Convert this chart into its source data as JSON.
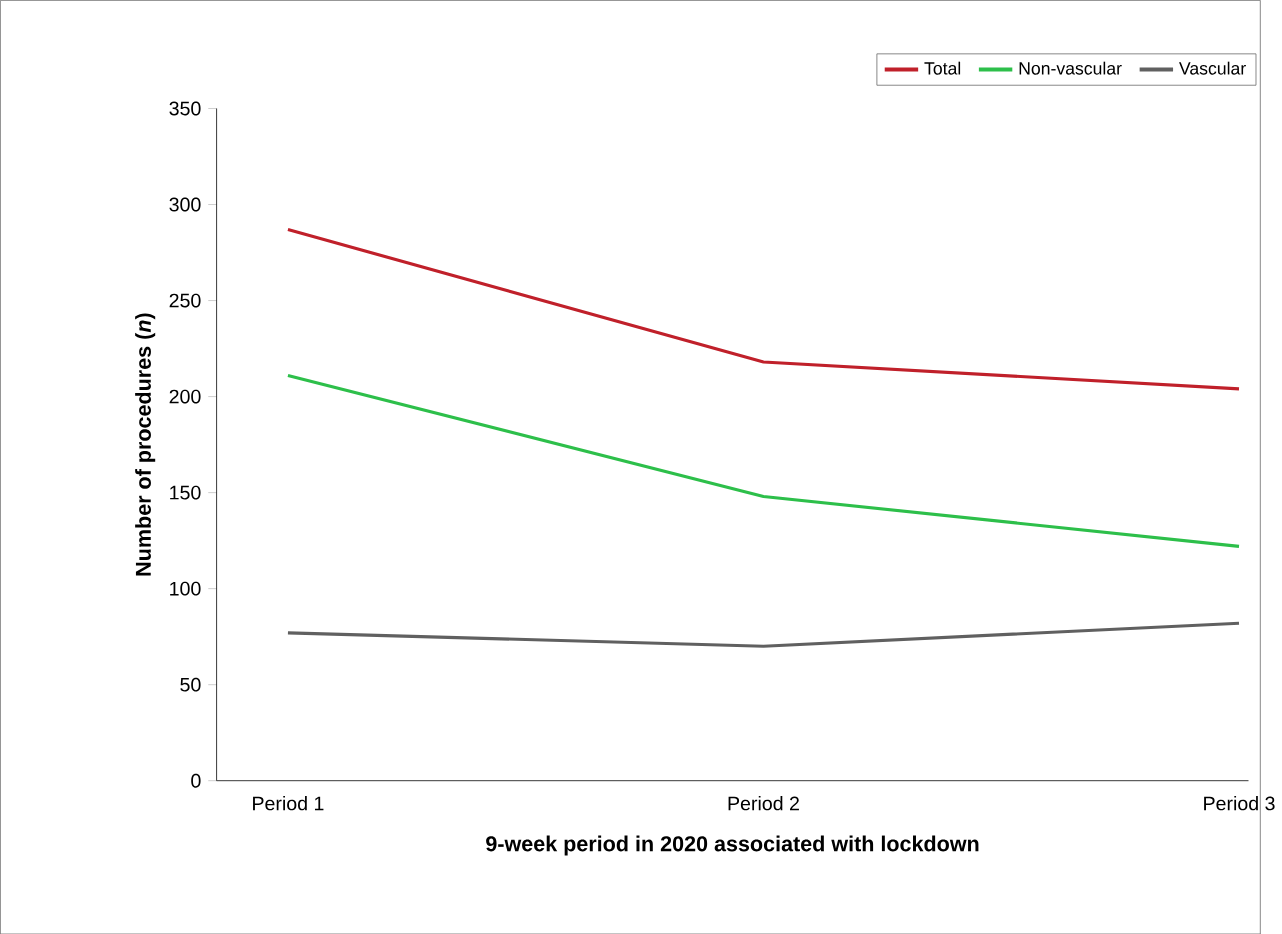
{
  "chart_data": {
    "type": "line",
    "xlabel": "9-week period in 2020 associated with lockdown",
    "ylabel": "Number of procedures (*n*)",
    "categories": [
      "Period 1",
      "Period 2",
      "Period 3"
    ],
    "series": [
      {
        "name": "Total",
        "color": "#c0202a",
        "values": [
          287,
          218,
          204
        ]
      },
      {
        "name": "Non-vascular",
        "color": "#2dbf4a",
        "values": [
          211,
          148,
          122
        ]
      },
      {
        "name": "Vascular",
        "color": "#606060",
        "values": [
          77,
          70,
          82
        ]
      }
    ],
    "ylim": [
      0,
      350
    ],
    "yticks": [
      0,
      50,
      100,
      150,
      200,
      250,
      300,
      350
    ],
    "legend": "top right",
    "marker": "none",
    "line_style": "solid",
    "grid": false
  }
}
